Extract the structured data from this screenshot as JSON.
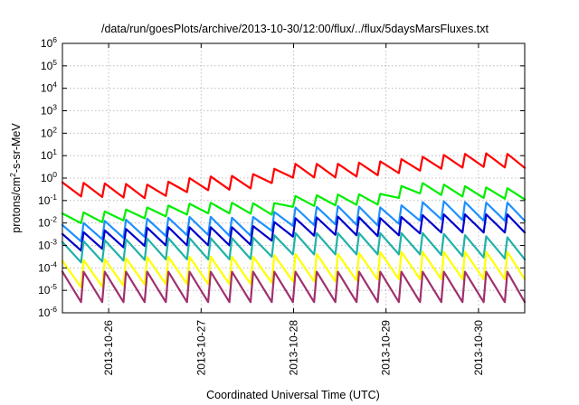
{
  "chart_data": {
    "type": "line",
    "title": "/data/run/goesPlots/archive/2013-10-30/12:00/flux/../flux/5daysMarsFluxes.txt",
    "xlabel": "Coordinated Universal Time (UTC)",
    "ylabel": "protons/cm2-s-sr-MeV",
    "ylabel_parts": {
      "base": "protons/cm",
      "exp": "2",
      "rest": "-s-sr-MeV"
    },
    "x_scale": "time",
    "xlim": [
      "2013-10-25 12:00",
      "2013-10-30 12:00"
    ],
    "x_ticks": [
      "2013-10-26",
      "2013-10-27",
      "2013-10-28",
      "2013-10-29",
      "2013-10-30"
    ],
    "y_scale": "log",
    "ylim": [
      1e-06,
      1000000.0
    ],
    "y_ticks": [
      {
        "value": 1e-06,
        "base": "10",
        "exp": "-6"
      },
      {
        "value": 1e-05,
        "base": "10",
        "exp": "-5"
      },
      {
        "value": 0.0001,
        "base": "10",
        "exp": "-4"
      },
      {
        "value": 0.001,
        "base": "10",
        "exp": "-3"
      },
      {
        "value": 0.01,
        "base": "10",
        "exp": "-2"
      },
      {
        "value": 0.1,
        "base": "10",
        "exp": "-1"
      },
      {
        "value": 1,
        "base": "10",
        "exp": "0"
      },
      {
        "value": 10,
        "base": "10",
        "exp": "1"
      },
      {
        "value": 100,
        "base": "10",
        "exp": "2"
      },
      {
        "value": 1000,
        "base": "10",
        "exp": "3"
      },
      {
        "value": 10000,
        "base": "10",
        "exp": "4"
      },
      {
        "value": 100000,
        "base": "10",
        "exp": "5"
      },
      {
        "value": 1000000,
        "base": "10",
        "exp": "6"
      }
    ],
    "grid": true,
    "series": [
      {
        "color": "#ff0000",
        "values": [
          [
            "2013-10-25 12:00",
            0.45
          ],
          [
            "2013-10-26 00:00",
            0.4
          ],
          [
            "2013-10-26 12:00",
            0.35
          ],
          [
            "2013-10-26 18:00",
            0.6
          ],
          [
            "2013-10-27 00:00",
            0.8
          ],
          [
            "2013-10-27 12:00",
            0.9
          ],
          [
            "2013-10-28 00:00",
            3.0
          ],
          [
            "2013-10-28 12:00",
            3.0
          ],
          [
            "2013-10-29 00:00",
            4.0
          ],
          [
            "2013-10-29 12:00",
            7.0
          ],
          [
            "2013-10-30 00:00",
            9.0
          ],
          [
            "2013-10-30 12:00",
            8.0
          ]
        ]
      },
      {
        "color": "#00ee00",
        "values": [
          [
            "2013-10-25 12:00",
            0.02
          ],
          [
            "2013-10-26 00:00",
            0.025
          ],
          [
            "2013-10-26 12:00",
            0.04
          ],
          [
            "2013-10-27 00:00",
            0.06
          ],
          [
            "2013-10-27 12:00",
            0.06
          ],
          [
            "2013-10-27 18:00",
            0.05
          ],
          [
            "2013-10-28 00:00",
            0.12
          ],
          [
            "2013-10-28 12:00",
            0.14
          ],
          [
            "2013-10-29 00:00",
            0.15
          ],
          [
            "2013-10-29 06:00",
            0.5
          ],
          [
            "2013-10-30 00:00",
            0.3
          ],
          [
            "2013-10-30 12:00",
            0.25
          ]
        ]
      },
      {
        "color": "#1e90ff",
        "values": [
          [
            "2013-10-25 12:00",
            0.005
          ],
          [
            "2013-10-26 00:00",
            0.008
          ],
          [
            "2013-10-26 12:00",
            0.01
          ],
          [
            "2013-10-27 00:00",
            0.012
          ],
          [
            "2013-10-27 12:00",
            0.01
          ],
          [
            "2013-10-28 00:00",
            0.03
          ],
          [
            "2013-10-28 12:00",
            0.035
          ],
          [
            "2013-10-29 00:00",
            0.03
          ],
          [
            "2013-10-29 12:00",
            0.06
          ],
          [
            "2013-10-30 00:00",
            0.05
          ],
          [
            "2013-10-30 12:00",
            0.05
          ]
        ]
      },
      {
        "color": "#0000cd",
        "values": [
          [
            "2013-10-25 12:00",
            0.002
          ],
          [
            "2013-10-26 00:00",
            0.003
          ],
          [
            "2013-10-26 12:00",
            0.004
          ],
          [
            "2013-10-27 00:00",
            0.004
          ],
          [
            "2013-10-27 12:00",
            0.004
          ],
          [
            "2013-10-28 00:00",
            0.01
          ],
          [
            "2013-10-28 12:00",
            0.012
          ],
          [
            "2013-10-29 00:00",
            0.01
          ],
          [
            "2013-10-29 12:00",
            0.015
          ],
          [
            "2013-10-30 00:00",
            0.015
          ],
          [
            "2013-10-30 12:00",
            0.015
          ]
        ]
      },
      {
        "color": "#20b2aa",
        "values": [
          [
            "2013-10-25 12:00",
            0.0008
          ],
          [
            "2013-10-26 00:00",
            0.001
          ],
          [
            "2013-10-26 12:00",
            0.0012
          ],
          [
            "2013-10-27 00:00",
            0.0012
          ],
          [
            "2013-10-27 12:00",
            0.0012
          ],
          [
            "2013-10-28 00:00",
            0.002
          ],
          [
            "2013-10-28 12:00",
            0.002
          ],
          [
            "2013-10-29 00:00",
            0.002
          ],
          [
            "2013-10-29 12:00",
            0.002
          ],
          [
            "2013-10-30 00:00",
            0.0015
          ],
          [
            "2013-10-30 12:00",
            0.0012
          ]
        ]
      },
      {
        "color": "#ffff00",
        "values": [
          [
            "2013-10-25 12:00",
            0.0001
          ],
          [
            "2013-10-26 00:00",
            0.00012
          ],
          [
            "2013-10-26 12:00",
            0.00015
          ],
          [
            "2013-10-27 00:00",
            0.00015
          ],
          [
            "2013-10-27 12:00",
            0.00015
          ],
          [
            "2013-10-28 00:00",
            0.0002
          ],
          [
            "2013-10-28 12:00",
            0.0002
          ],
          [
            "2013-10-29 00:00",
            0.00025
          ],
          [
            "2013-10-29 12:00",
            0.00025
          ],
          [
            "2013-10-30 00:00",
            0.00025
          ],
          [
            "2013-10-30 12:00",
            0.00025
          ]
        ]
      },
      {
        "color": "#a0306e",
        "values": [
          [
            "2013-10-25 12:00",
            3e-05
          ],
          [
            "2013-10-26 00:00",
            3e-05
          ],
          [
            "2013-10-26 12:00",
            3e-05
          ],
          [
            "2013-10-27 00:00",
            3e-05
          ],
          [
            "2013-10-27 12:00",
            3e-05
          ],
          [
            "2013-10-28 00:00",
            3e-05
          ],
          [
            "2013-10-28 12:00",
            3e-05
          ],
          [
            "2013-10-29 00:00",
            3e-05
          ],
          [
            "2013-10-29 12:00",
            3e-05
          ],
          [
            "2013-10-30 00:00",
            3e-05
          ],
          [
            "2013-10-30 12:00",
            3e-05
          ]
        ]
      }
    ]
  }
}
